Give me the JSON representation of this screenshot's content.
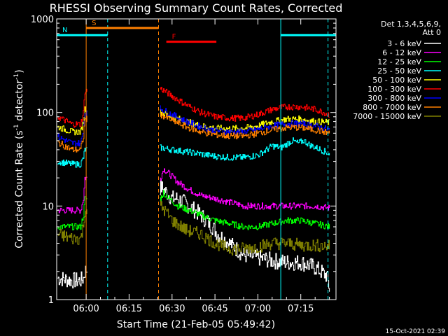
{
  "chart_data": {
    "type": "line",
    "title": "RHESSI Observing Summary Count Rates, Corrected",
    "xlabel": "Start Time (21-Feb-05 05:49:42)",
    "ylabel": "Corrected Count Rate (s⁻¹ detector⁻¹)",
    "ylabel_prefix": "Corrected Count Rate (s",
    "ylabel_mid": " detector",
    "ylabel_suffix": ")",
    "ylabel_sup": "-1",
    "yscale": "log",
    "ylim": [
      1,
      1000
    ],
    "xlim_minutes": [
      -10.3,
      87.3
    ],
    "x_ticks": [
      {
        "label": "06:00",
        "m": 0
      },
      {
        "label": "06:15",
        "m": 15
      },
      {
        "label": "06:30",
        "m": 30
      },
      {
        "label": "06:45",
        "m": 45
      },
      {
        "label": "07:00",
        "m": 60
      },
      {
        "label": "07:15",
        "m": 75
      }
    ],
    "y_ticks": [
      {
        "label": "1",
        "v": 1
      },
      {
        "label": "10",
        "v": 10
      },
      {
        "label": "100",
        "v": 100
      },
      {
        "label": "1000",
        "v": 1000
      }
    ],
    "legend_header": [
      "Det 1,3,4,5,6,9,",
      "Att 0"
    ],
    "footer_date": "15-Oct-2021 02:39",
    "gaps_minutes": [
      [
        0.4,
        25.6
      ]
    ],
    "series": [
      {
        "name": "3 - 6 keV",
        "color": "#ffffff",
        "points": [
          [
            -10,
            1.7
          ],
          [
            -5,
            1.6
          ],
          [
            -2,
            1.6
          ],
          [
            -1,
            1.7
          ],
          [
            -0.5,
            2.0
          ],
          [
            26,
            16
          ],
          [
            28,
            14
          ],
          [
            30,
            12
          ],
          [
            32,
            12
          ],
          [
            36,
            10
          ],
          [
            40,
            8
          ],
          [
            42,
            7
          ],
          [
            44,
            6
          ],
          [
            46,
            5
          ],
          [
            50,
            4
          ],
          [
            55,
            3
          ],
          [
            60,
            2.8
          ],
          [
            65,
            2.6
          ],
          [
            70,
            2.5
          ],
          [
            75,
            2.5
          ],
          [
            80,
            2.2
          ],
          [
            84,
            1.8
          ],
          [
            85,
            1.3
          ]
        ]
      },
      {
        "name": "6 - 12 keV",
        "color": "#ff00ff",
        "points": [
          [
            -10,
            9
          ],
          [
            -5,
            9
          ],
          [
            -2,
            9
          ],
          [
            -1,
            12
          ],
          [
            -0.5,
            20
          ],
          [
            26,
            20
          ],
          [
            27,
            25
          ],
          [
            29,
            22
          ],
          [
            32,
            18
          ],
          [
            36,
            15
          ],
          [
            40,
            13
          ],
          [
            45,
            12
          ],
          [
            50,
            11
          ],
          [
            55,
            10
          ],
          [
            60,
            10
          ],
          [
            65,
            10
          ],
          [
            70,
            10
          ],
          [
            75,
            10
          ],
          [
            80,
            10
          ],
          [
            85,
            9.5
          ]
        ]
      },
      {
        "name": "12 - 25 keV",
        "color": "#00ff00",
        "points": [
          [
            -10,
            6
          ],
          [
            -5,
            6
          ],
          [
            -2,
            6
          ],
          [
            -1,
            8
          ],
          [
            -0.5,
            12
          ],
          [
            26,
            12
          ],
          [
            27,
            14
          ],
          [
            29,
            12
          ],
          [
            32,
            10
          ],
          [
            36,
            9
          ],
          [
            40,
            8
          ],
          [
            45,
            7
          ],
          [
            50,
            6.5
          ],
          [
            55,
            6
          ],
          [
            60,
            6
          ],
          [
            65,
            6.5
          ],
          [
            70,
            7
          ],
          [
            75,
            7
          ],
          [
            80,
            6.5
          ],
          [
            85,
            6
          ]
        ]
      },
      {
        "name": "25 - 50 keV",
        "color": "#00ffff",
        "points": [
          [
            -10,
            30
          ],
          [
            -5,
            28
          ],
          [
            -2,
            28
          ],
          [
            -1,
            33
          ],
          [
            -0.5,
            40
          ],
          [
            26,
            42
          ],
          [
            30,
            40
          ],
          [
            35,
            38
          ],
          [
            40,
            36
          ],
          [
            45,
            34
          ],
          [
            50,
            33
          ],
          [
            55,
            33
          ],
          [
            60,
            35
          ],
          [
            63,
            40
          ],
          [
            65,
            44
          ],
          [
            68,
            42
          ],
          [
            70,
            46
          ],
          [
            72,
            50
          ],
          [
            74,
            47
          ],
          [
            76,
            50
          ],
          [
            78,
            45
          ],
          [
            82,
            40
          ],
          [
            85,
            36
          ]
        ]
      },
      {
        "name": "50 - 100 keV",
        "color": "#ffff00",
        "points": [
          [
            -10,
            70
          ],
          [
            -5,
            62
          ],
          [
            -2,
            62
          ],
          [
            -1,
            80
          ],
          [
            -0.5,
            110
          ],
          [
            26,
            100
          ],
          [
            30,
            90
          ],
          [
            35,
            80
          ],
          [
            40,
            72
          ],
          [
            45,
            68
          ],
          [
            50,
            67
          ],
          [
            55,
            68
          ],
          [
            60,
            72
          ],
          [
            65,
            80
          ],
          [
            70,
            85
          ],
          [
            75,
            85
          ],
          [
            80,
            80
          ],
          [
            85,
            78
          ]
        ]
      },
      {
        "name": "100 - 300 keV",
        "color": "#ff0000",
        "points": [
          [
            -10,
            90
          ],
          [
            -5,
            75
          ],
          [
            -2,
            75
          ],
          [
            -1,
            100
          ],
          [
            -0.5,
            170
          ],
          [
            26,
            180
          ],
          [
            30,
            150
          ],
          [
            35,
            120
          ],
          [
            40,
            100
          ],
          [
            45,
            90
          ],
          [
            50,
            87
          ],
          [
            55,
            87
          ],
          [
            60,
            95
          ],
          [
            65,
            108
          ],
          [
            70,
            115
          ],
          [
            75,
            115
          ],
          [
            80,
            108
          ],
          [
            85,
            95
          ]
        ]
      },
      {
        "name": "300 - 800 keV",
        "color": "#0000ff",
        "points": [
          [
            -10,
            55
          ],
          [
            -5,
            47
          ],
          [
            -2,
            47
          ],
          [
            -1,
            65
          ],
          [
            -0.5,
            100
          ],
          [
            26,
            110
          ],
          [
            30,
            95
          ],
          [
            35,
            80
          ],
          [
            40,
            70
          ],
          [
            45,
            64
          ],
          [
            50,
            62
          ],
          [
            55,
            62
          ],
          [
            60,
            66
          ],
          [
            65,
            72
          ],
          [
            70,
            76
          ],
          [
            75,
            76
          ],
          [
            80,
            72
          ],
          [
            85,
            65
          ]
        ]
      },
      {
        "name": "800 - 7000 keV",
        "color": "#ff8000",
        "points": [
          [
            -10,
            48
          ],
          [
            -5,
            40
          ],
          [
            -2,
            40
          ],
          [
            -1,
            55
          ],
          [
            -0.5,
            85
          ],
          [
            26,
            95
          ],
          [
            30,
            82
          ],
          [
            35,
            70
          ],
          [
            40,
            62
          ],
          [
            45,
            58
          ],
          [
            50,
            56
          ],
          [
            55,
            56
          ],
          [
            60,
            60
          ],
          [
            65,
            65
          ],
          [
            70,
            69
          ],
          [
            75,
            69
          ],
          [
            80,
            65
          ],
          [
            85,
            60
          ]
        ]
      },
      {
        "name": "7000 - 15000 keV",
        "color": "#808000",
        "points": [
          [
            -10,
            5
          ],
          [
            -5,
            4.5
          ],
          [
            -2,
            4.5
          ],
          [
            -1,
            6
          ],
          [
            -0.5,
            9
          ],
          [
            26,
            10
          ],
          [
            28,
            8.5
          ],
          [
            30,
            7
          ],
          [
            35,
            5.5
          ],
          [
            40,
            5
          ],
          [
            45,
            4
          ],
          [
            50,
            3.5
          ],
          [
            55,
            3.5
          ],
          [
            60,
            3.7
          ],
          [
            65,
            4
          ],
          [
            70,
            4
          ],
          [
            75,
            3.8
          ],
          [
            80,
            3.8
          ],
          [
            85,
            3.7
          ]
        ]
      }
    ],
    "flag_bars": [
      {
        "label": "S",
        "color": "#ff8000",
        "m_start": 0,
        "m_end": 25.3,
        "v": 800
      },
      {
        "label": "N",
        "color": "#00ffff",
        "m_start": -10.3,
        "m_end": 7.5,
        "v": 670
      },
      {
        "label": "",
        "color": "#00ffff",
        "m_start": 68,
        "m_end": 87.3,
        "v": 670
      },
      {
        "label": "F",
        "color": "#ff0000",
        "m_start": 28,
        "m_end": 45.5,
        "v": 570
      }
    ],
    "vlines": [
      {
        "m": 0,
        "color": "#ff8000",
        "style": "solid"
      },
      {
        "m": 7.5,
        "color": "#00ffff",
        "style": "dashed"
      },
      {
        "m": 25.3,
        "color": "#ff8000",
        "style": "dashed"
      },
      {
        "m": 68,
        "color": "#00ffff",
        "style": "solid"
      },
      {
        "m": 84.5,
        "color": "#00ffff",
        "style": "dashed"
      }
    ]
  }
}
